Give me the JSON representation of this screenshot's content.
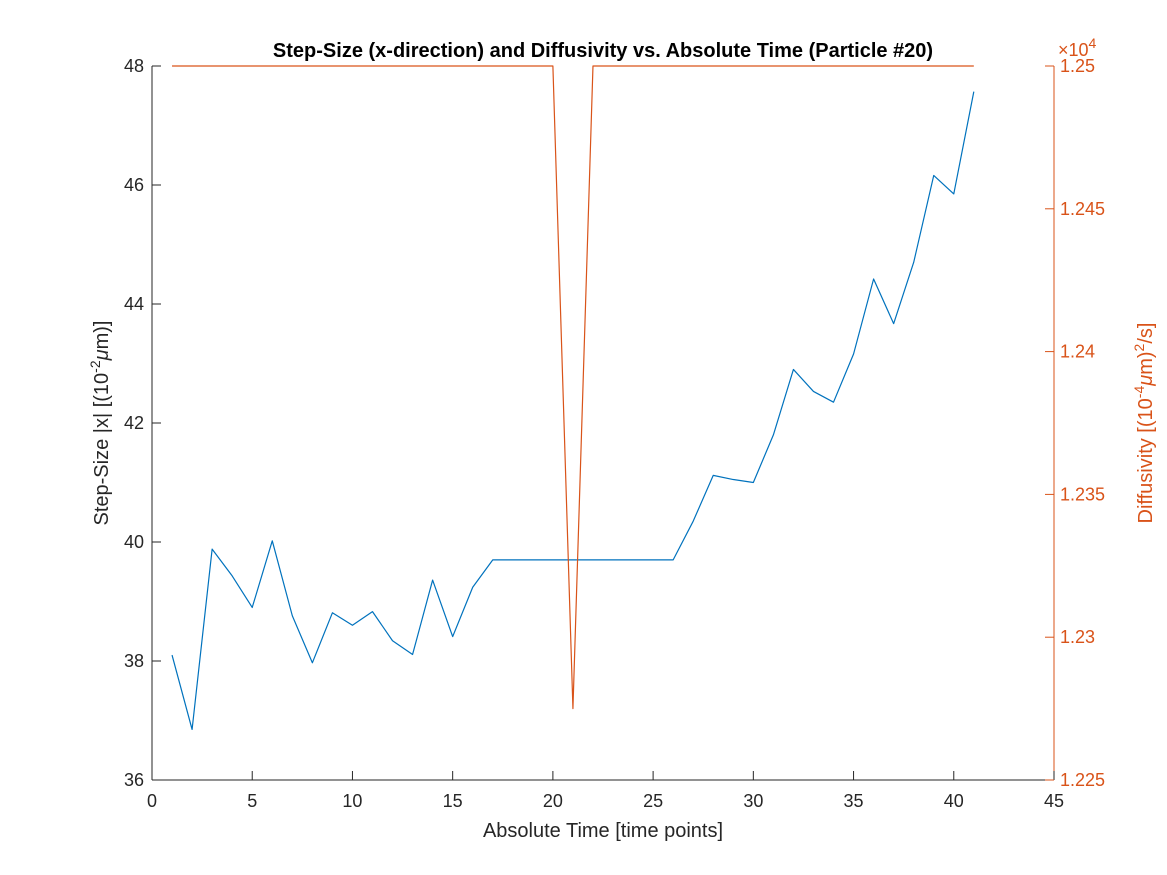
{
  "colors": {
    "left_axis": "#262626",
    "right_axis": "#d95319",
    "series_step": "#0072bd",
    "series_diff": "#d95319",
    "background": "#ffffff"
  },
  "chart_data": {
    "type": "line",
    "title": "Step-Size (x-direction) and Diffusivity vs. Absolute Time (Particle #20)",
    "xlabel": "Absolute Time [time points]",
    "xlim": [
      0,
      45
    ],
    "xticks": [
      "0",
      "5",
      "10",
      "15",
      "20",
      "25",
      "30",
      "35",
      "40",
      "45"
    ],
    "grid": false,
    "y_left": {
      "label_main": "Step-Size |x| [(10",
      "label_exp": "-2",
      "label_unit": "μ",
      "label_end": "m)]",
      "ylim": [
        36,
        48
      ],
      "ticks": [
        "36",
        "38",
        "40",
        "42",
        "44",
        "46",
        "48"
      ]
    },
    "y_right": {
      "label_main": "Diffusivity [(10",
      "label_exp": "-4",
      "label_unit": "μ",
      "label_mid": "m)",
      "label_exp2": "2",
      "label_end": "/s]",
      "multiplier_base": "×10",
      "multiplier_exp": "4",
      "ylim": [
        1.225,
        1.25
      ],
      "ticks": [
        "1.225",
        "1.23",
        "1.235",
        "1.24",
        "1.245",
        "1.25"
      ]
    },
    "series": [
      {
        "axis": "left",
        "x": [
          1,
          2,
          3,
          4,
          5,
          6,
          7,
          8,
          9,
          10,
          11,
          12,
          13,
          14,
          15,
          16,
          17,
          18,
          19,
          20,
          21,
          22,
          23,
          24,
          25,
          26,
          27,
          28,
          29,
          30,
          31,
          32,
          33,
          34,
          35,
          36,
          37,
          38,
          39,
          40,
          41
        ],
        "values": [
          38.1,
          36.85,
          39.88,
          39.43,
          38.9,
          40.02,
          38.76,
          37.97,
          38.81,
          38.6,
          38.83,
          38.34,
          38.11,
          39.36,
          38.41,
          39.24,
          39.7,
          39.7,
          39.7,
          39.7,
          39.7,
          39.7,
          39.7,
          39.7,
          39.7,
          39.7,
          40.35,
          41.12,
          41.05,
          41.0,
          41.8,
          42.9,
          42.53,
          42.35,
          43.16,
          44.42,
          43.67,
          44.7,
          46.16,
          45.85,
          47.57
        ]
      },
      {
        "axis": "right",
        "x": [
          1,
          20,
          21,
          22,
          41
        ],
        "values": [
          1.25,
          1.25,
          1.2275,
          1.25,
          1.25
        ]
      }
    ]
  }
}
